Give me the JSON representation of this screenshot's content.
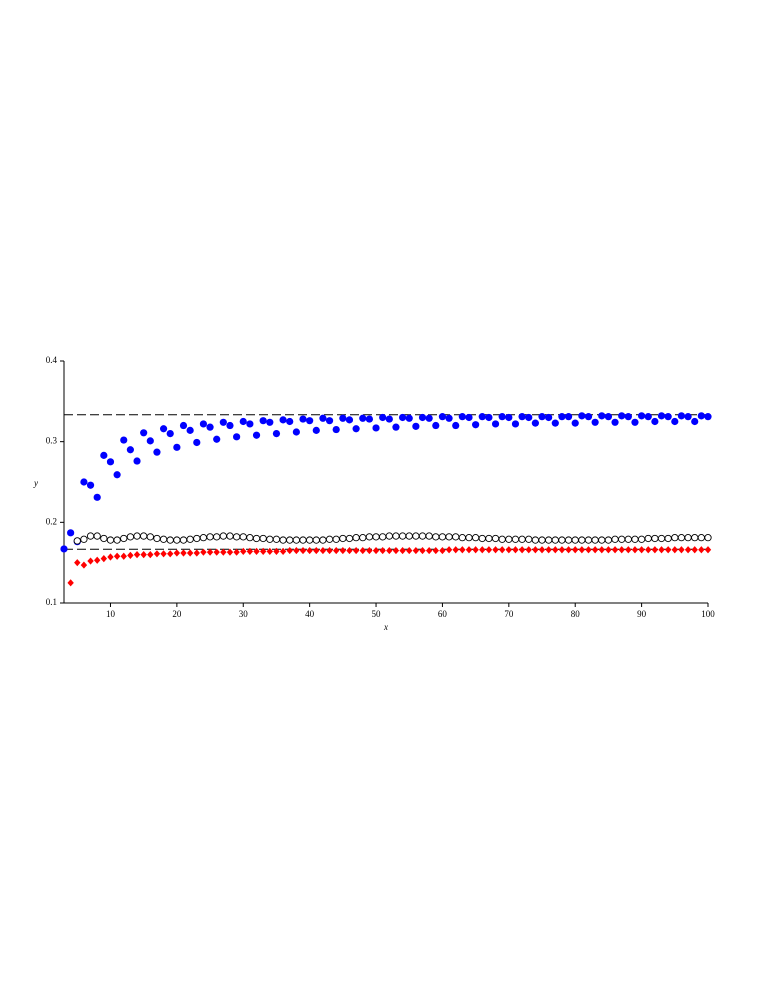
{
  "chart_data": {
    "type": "scatter",
    "x_label": "x",
    "y_label": "y",
    "xlim": [
      3,
      100
    ],
    "ylim": [
      0.1,
      0.4
    ],
    "xticks": [
      10,
      20,
      30,
      40,
      50,
      60,
      70,
      80,
      90,
      100
    ],
    "yticks": [
      0.1,
      0.2,
      0.3,
      0.4
    ],
    "hlines": [
      0.3333,
      0.1667
    ],
    "x": [
      3,
      4,
      5,
      6,
      7,
      8,
      9,
      10,
      11,
      12,
      13,
      14,
      15,
      16,
      17,
      18,
      19,
      20,
      21,
      22,
      23,
      24,
      25,
      26,
      27,
      28,
      29,
      30,
      31,
      32,
      33,
      34,
      35,
      36,
      37,
      38,
      39,
      40,
      41,
      42,
      43,
      44,
      45,
      46,
      47,
      48,
      49,
      50,
      51,
      52,
      53,
      54,
      55,
      56,
      57,
      58,
      59,
      60,
      61,
      62,
      63,
      64,
      65,
      66,
      67,
      68,
      69,
      70,
      71,
      72,
      73,
      74,
      75,
      76,
      77,
      78,
      79,
      80,
      81,
      82,
      83,
      84,
      85,
      86,
      87,
      88,
      89,
      90,
      91,
      92,
      93,
      94,
      95,
      96,
      97,
      98,
      99,
      100
    ],
    "series": [
      {
        "marker": "filled-circle",
        "color": "#0000ff",
        "values": [
          0.167,
          0.187,
          0.176,
          0.25,
          0.246,
          0.231,
          0.283,
          0.275,
          0.259,
          0.302,
          0.29,
          0.276,
          0.311,
          0.301,
          0.287,
          0.316,
          0.31,
          0.293,
          0.32,
          0.314,
          0.299,
          0.322,
          0.318,
          0.303,
          0.324,
          0.32,
          0.306,
          0.325,
          0.322,
          0.308,
          0.326,
          0.324,
          0.31,
          0.327,
          0.325,
          0.312,
          0.328,
          0.326,
          0.314,
          0.329,
          0.326,
          0.315,
          0.329,
          0.327,
          0.316,
          0.329,
          0.328,
          0.317,
          0.33,
          0.328,
          0.318,
          0.33,
          0.329,
          0.319,
          0.33,
          0.329,
          0.32,
          0.331,
          0.329,
          0.32,
          0.331,
          0.33,
          0.321,
          0.331,
          0.33,
          0.322,
          0.331,
          0.33,
          0.322,
          0.331,
          0.33,
          0.323,
          0.331,
          0.33,
          0.323,
          0.331,
          0.331,
          0.323,
          0.332,
          0.331,
          0.324,
          0.332,
          0.331,
          0.324,
          0.332,
          0.331,
          0.324,
          0.332,
          0.331,
          0.325,
          0.332,
          0.331,
          0.325,
          0.332,
          0.331,
          0.325,
          0.332,
          0.331
        ]
      },
      {
        "marker": "open-circle",
        "color": "#000000",
        "values": [
          null,
          null,
          0.177,
          0.179,
          0.183,
          0.183,
          0.18,
          0.178,
          0.178,
          0.18,
          0.182,
          0.183,
          0.183,
          0.182,
          0.18,
          0.179,
          0.178,
          0.178,
          0.178,
          0.179,
          0.18,
          0.181,
          0.182,
          0.182,
          0.183,
          0.183,
          0.182,
          0.182,
          0.181,
          0.18,
          0.18,
          0.179,
          0.179,
          0.178,
          0.178,
          0.178,
          0.178,
          0.178,
          0.178,
          0.178,
          0.179,
          0.179,
          0.18,
          0.18,
          0.181,
          0.181,
          0.182,
          0.182,
          0.182,
          0.183,
          0.183,
          0.183,
          0.183,
          0.183,
          0.183,
          0.183,
          0.182,
          0.182,
          0.182,
          0.182,
          0.181,
          0.181,
          0.181,
          0.18,
          0.18,
          0.18,
          0.179,
          0.179,
          0.179,
          0.179,
          0.179,
          0.178,
          0.178,
          0.178,
          0.178,
          0.178,
          0.178,
          0.178,
          0.178,
          0.178,
          0.178,
          0.178,
          0.178,
          0.179,
          0.179,
          0.179,
          0.179,
          0.179,
          0.18,
          0.18,
          0.18,
          0.18,
          0.181,
          0.181,
          0.181,
          0.181,
          0.181,
          0.181
        ]
      },
      {
        "marker": "diamond",
        "color": "#ff0000",
        "values": [
          null,
          0.125,
          0.15,
          0.147,
          0.152,
          0.153,
          0.155,
          0.157,
          0.158,
          0.158,
          0.159,
          0.16,
          0.16,
          0.16,
          0.161,
          0.161,
          0.161,
          0.162,
          0.162,
          0.162,
          0.162,
          0.163,
          0.163,
          0.163,
          0.163,
          0.163,
          0.163,
          0.164,
          0.164,
          0.164,
          0.164,
          0.164,
          0.164,
          0.164,
          0.165,
          0.165,
          0.165,
          0.165,
          0.165,
          0.165,
          0.165,
          0.165,
          0.165,
          0.165,
          0.165,
          0.165,
          0.165,
          0.165,
          0.165,
          0.165,
          0.165,
          0.165,
          0.165,
          0.165,
          0.165,
          0.165,
          0.165,
          0.165,
          0.166,
          0.166,
          0.166,
          0.166,
          0.166,
          0.166,
          0.166,
          0.166,
          0.166,
          0.166,
          0.166,
          0.166,
          0.166,
          0.166,
          0.166,
          0.166,
          0.166,
          0.166,
          0.166,
          0.166,
          0.166,
          0.166,
          0.166,
          0.166,
          0.166,
          0.166,
          0.166,
          0.166,
          0.166,
          0.166,
          0.166,
          0.166,
          0.166,
          0.166,
          0.166,
          0.166,
          0.166,
          0.166,
          0.166,
          0.166
        ]
      }
    ]
  }
}
